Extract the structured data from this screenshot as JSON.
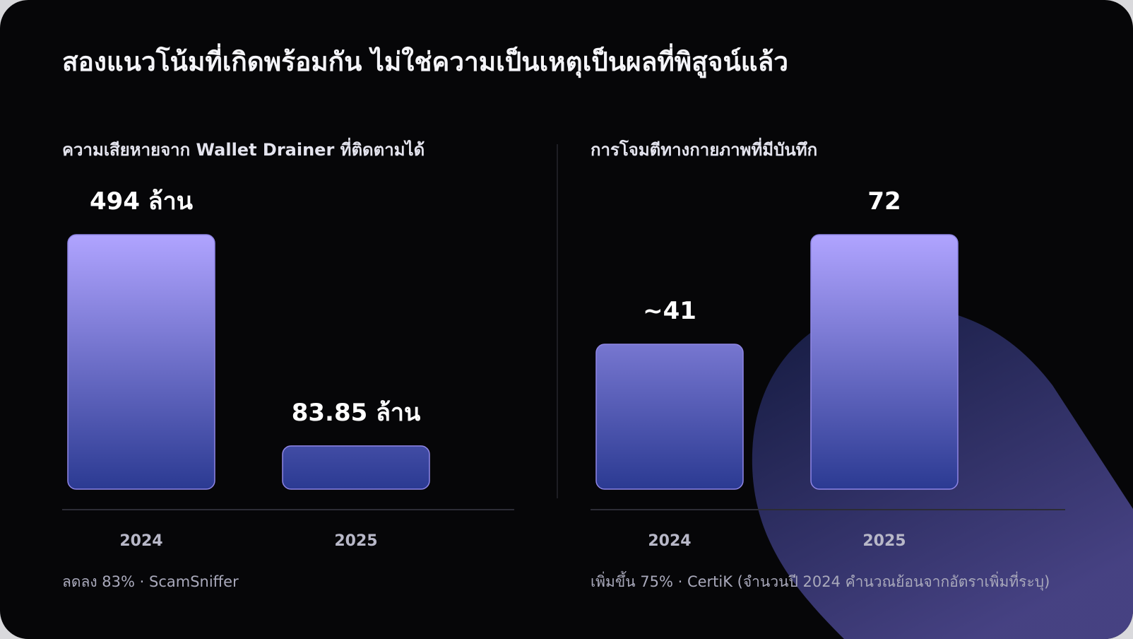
{
  "header": {
    "title": "สองแนวโน้มที่เกิดพร้อมกัน ไม่ใช่ความเป็นเหตุเป็นผลที่พิสูจน์แล้ว"
  },
  "chart_data": [
    {
      "type": "bar",
      "title": "ความเสียหายจาก Wallet Drainer ที่ติดตามได้",
      "categories": [
        "2024",
        "2025"
      ],
      "values": [
        494,
        83.85
      ],
      "value_labels": [
        "494 ล้าน",
        "83.85 ล้าน"
      ],
      "color": "#b0a4ff",
      "note": "ลดลง 83% · ScamSniffer"
    },
    {
      "type": "bar",
      "title": "การโจมตีทางกายภาพที่มีบันทึก",
      "categories": [
        "2024",
        "2025"
      ],
      "values": [
        41,
        72
      ],
      "value_labels": [
        "~41",
        "72"
      ],
      "color": "#b0a4ff",
      "note": "เพิ่มขึ้น 75% · CertiK (จำนวนปี 2024 คำนวณย้อนจากอัตราเพิ่มที่ระบุ)"
    }
  ]
}
